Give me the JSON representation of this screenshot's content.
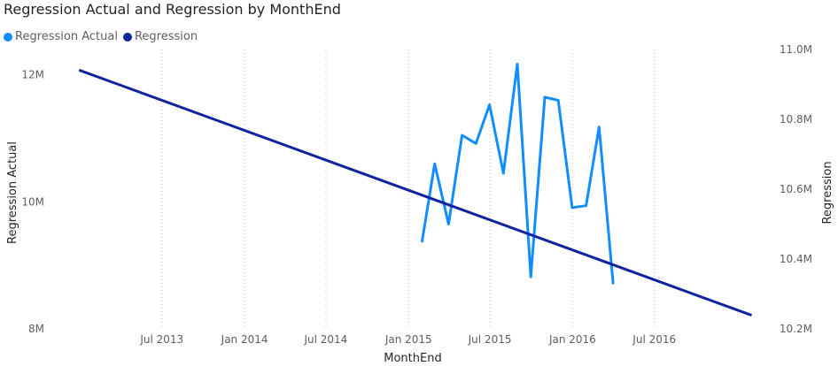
{
  "chart_data": {
    "type": "line",
    "title": "Regression Actual and Regression by MonthEnd",
    "xlabel": "MonthEnd",
    "ylabel": "Regression Actual",
    "y2label": "Regression",
    "legend_placement": "top-left",
    "grid": "vertical dotted",
    "x_ticks": [
      "Jul 2013",
      "Jan 2014",
      "Jul 2014",
      "Jan 2015",
      "Jul 2015",
      "Jan 2016",
      "Jul 2016"
    ],
    "x_range": [
      "2012-11-01",
      "2017-03-01"
    ],
    "y_left": {
      "ticks": [
        "8M",
        "10M",
        "12M"
      ],
      "ylim": [
        8,
        12.4
      ],
      "unit": "M"
    },
    "y_right": {
      "ticks": [
        "10.2M",
        "10.4M",
        "10.6M",
        "10.8M",
        "11.0M"
      ],
      "ylim": [
        10.2,
        11.0
      ],
      "unit": "M"
    },
    "series": [
      {
        "name": "Regression Actual",
        "color": "#118DFF",
        "axis": "left",
        "x": [
          "2015-01-31",
          "2015-02-28",
          "2015-03-31",
          "2015-04-30",
          "2015-05-31",
          "2015-06-30",
          "2015-07-31",
          "2015-08-31",
          "2015-09-30",
          "2015-10-31",
          "2015-11-30",
          "2015-12-31",
          "2016-01-31",
          "2016-02-29",
          "2016-03-31"
        ],
        "values": [
          9.38,
          10.6,
          9.65,
          11.05,
          10.92,
          11.53,
          10.45,
          12.17,
          8.82,
          11.65,
          11.6,
          9.91,
          9.94,
          11.18,
          8.72
        ]
      },
      {
        "name": "Regression",
        "color": "#12239E",
        "axis": "right",
        "x": [
          "2012-12-31",
          "2017-01-31"
        ],
        "values": [
          10.94,
          10.24
        ]
      }
    ]
  }
}
